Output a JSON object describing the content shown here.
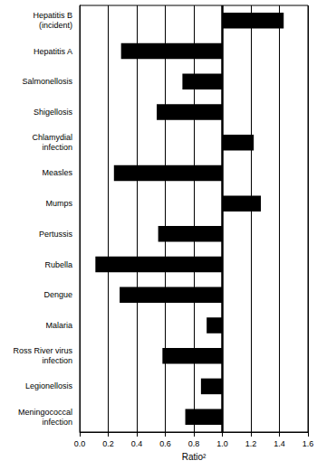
{
  "chart_data": {
    "type": "bar",
    "orientation": "horizontal",
    "categories": [
      "Hepatitis B\n(incident)",
      "Hepatitis A",
      "Salmonellosis",
      "Shigellosis",
      "Chlamydial\ninfection",
      "Measles",
      "Mumps",
      "Pertussis",
      "Rubella",
      "Dengue",
      "Malaria",
      "Ross River virus\ninfection",
      "Legionellosis",
      "Meningococcal\ninfection"
    ],
    "values": [
      1.43,
      0.29,
      0.72,
      0.54,
      1.22,
      0.24,
      1.27,
      0.55,
      0.11,
      0.28,
      0.89,
      0.58,
      0.85,
      0.74
    ],
    "baseline": 1,
    "color": "#000000",
    "x_label": "Ratio²",
    "xlim": [
      0,
      1.6
    ],
    "xticks": [
      {
        "value": 0,
        "label": "0.0"
      },
      0.2,
      0.4,
      0.6,
      0.8,
      {
        "value": 1,
        "label": "1.0"
      },
      1.2,
      1.4,
      1.6
    ],
    "grid": true
  }
}
